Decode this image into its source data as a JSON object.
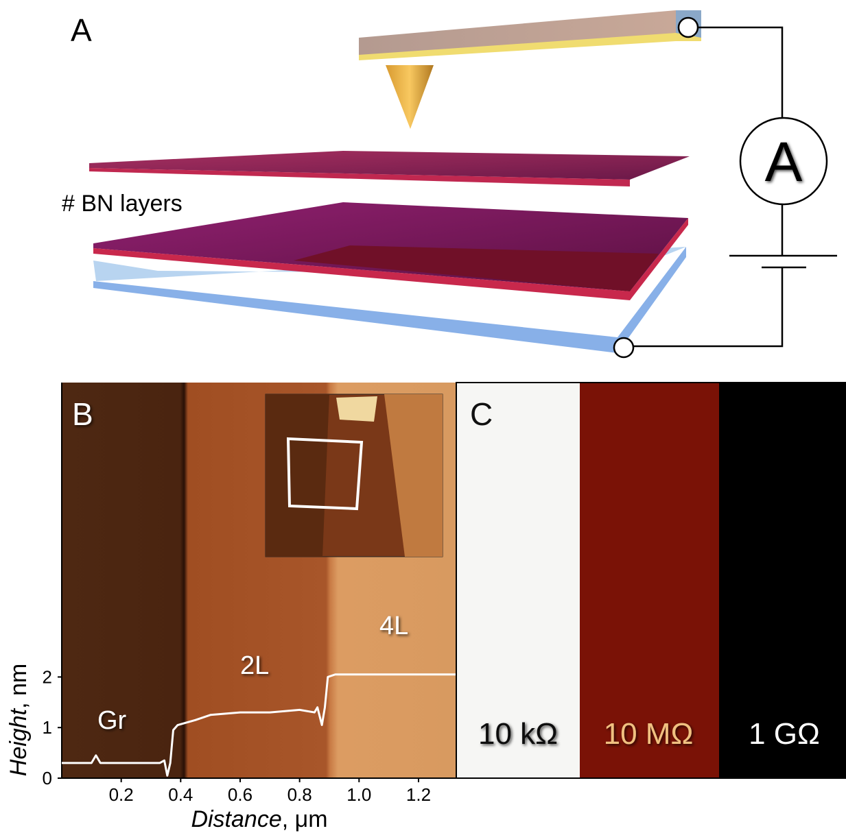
{
  "panel_a": {
    "label": "A",
    "layers_label": "# BN layers",
    "meter_label": "A"
  },
  "chart_data": {
    "type": "line",
    "panel_label": "B",
    "xlabel": {
      "italic": "Distance",
      "rest": ", μm"
    },
    "ylabel": {
      "italic": "Height",
      "rest": ", nm"
    },
    "regions": [
      "Gr",
      "2L",
      "4L"
    ],
    "x": [
      0.0,
      0.05,
      0.1,
      0.115,
      0.13,
      0.2,
      0.28,
      0.33,
      0.345,
      0.355,
      0.365,
      0.375,
      0.39,
      0.45,
      0.5,
      0.6,
      0.7,
      0.8,
      0.85,
      0.86,
      0.875,
      0.885,
      0.895,
      0.92,
      1.0,
      1.1,
      1.2,
      1.33
    ],
    "series": [
      {
        "color": "#ffffff",
        "values": [
          0.3,
          0.3,
          0.3,
          0.45,
          0.3,
          0.3,
          0.3,
          0.3,
          0.35,
          0.05,
          0.3,
          0.95,
          1.05,
          1.15,
          1.25,
          1.3,
          1.3,
          1.35,
          1.3,
          1.4,
          1.05,
          1.4,
          2.0,
          2.05,
          2.05,
          2.05,
          2.05,
          2.05
        ]
      }
    ],
    "xlim": [
      0,
      1.327
    ],
    "ylim": [
      0,
      7.82
    ],
    "xticks": [
      0.2,
      0.4,
      0.6,
      0.8,
      {
        "value": 1,
        "label": "1.0"
      },
      1.2
    ],
    "yticks": [
      0,
      1,
      2
    ]
  },
  "panel_c": {
    "label": "C",
    "resistances": [
      "10 kΩ",
      "10 MΩ",
      "1 GΩ"
    ]
  }
}
